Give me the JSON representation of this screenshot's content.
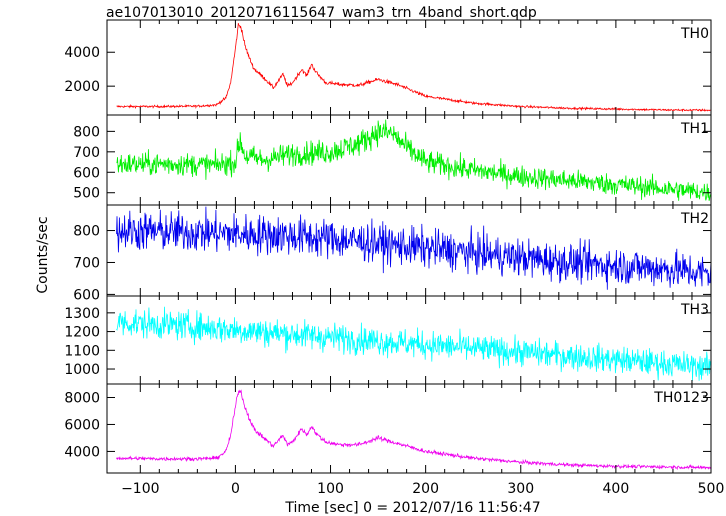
{
  "chart_data": {
    "type": "line",
    "title": "ae107013010_20120716115647_wam3_trn_4band_short.qdp",
    "xlabel": "Time [sec] 0 = 2012/07/16 11:56:47",
    "ylabel": "Counts/sec",
    "xlim": [
      -135,
      500
    ],
    "x_ticks": [
      "−100",
      "0",
      "100",
      "200",
      "300",
      "400",
      "500"
    ],
    "x_tick_values": [
      -100,
      0,
      100,
      200,
      300,
      400,
      500
    ],
    "panels": [
      {
        "name": "TH0",
        "color": "#ff0000",
        "ylim": [
          300,
          5900
        ],
        "y_ticks": [
          "2000",
          "4000"
        ],
        "y_tick_values": [
          2000,
          4000
        ],
        "series": [
          {
            "x": [
              -125,
              -80,
              -40,
              -20,
              -10,
              -5,
              0,
              3,
              6,
              10,
              15,
              20,
              30,
              40,
              50,
              55,
              60,
              70,
              75,
              80,
              85,
              95,
              110,
              130,
              150,
              170,
              200,
              250,
              300,
              350,
              400,
              450,
              500
            ],
            "y": [
              800,
              800,
              820,
              900,
              1300,
              2200,
              4200,
              5600,
              5500,
              4400,
              3600,
              3000,
              2500,
              1900,
              2700,
              2000,
              2200,
              3000,
              2600,
              3300,
              2800,
              2200,
              2100,
              2050,
              2400,
              2100,
              1400,
              1000,
              800,
              700,
              650,
              600,
              580
            ]
          }
        ]
      },
      {
        "name": "TH1",
        "color": "#00ee00",
        "ylim": [
          440,
          880
        ],
        "y_ticks": [
          "500",
          "600",
          "700",
          "800"
        ],
        "y_tick_values": [
          500,
          600,
          700,
          800
        ],
        "series": [
          {
            "x": [
              -125,
              -60,
              -20,
              0,
              5,
              10,
              30,
              60,
              100,
              130,
              150,
              165,
              180,
              200,
              250,
              300,
              350,
              400,
              450,
              500
            ],
            "y": [
              640,
              640,
              635,
              650,
              760,
              680,
              660,
              690,
              700,
              740,
              800,
              790,
              720,
              650,
              610,
              580,
              560,
              540,
              520,
              500
            ]
          }
        ]
      },
      {
        "name": "TH2",
        "color": "#0000ee",
        "ylim": [
          595,
          880
        ],
        "y_ticks": [
          "600",
          "700",
          "800"
        ],
        "y_tick_values": [
          600,
          700,
          800
        ],
        "series": [
          {
            "x": [
              -125,
              -50,
              0,
              50,
              100,
              150,
              200,
              250,
              300,
              350,
              400,
              450,
              500
            ],
            "y": [
              800,
              795,
              790,
              785,
              775,
              760,
              745,
              730,
              715,
              700,
              690,
              680,
              665
            ]
          }
        ]
      },
      {
        "name": "TH3",
        "color": "#00ffff",
        "ylim": [
          920,
          1390
        ],
        "y_ticks": [
          "1000",
          "1100",
          "1200",
          "1300"
        ],
        "y_tick_values": [
          1000,
          1100,
          1200,
          1300
        ],
        "series": [
          {
            "x": [
              -125,
              -50,
              0,
              50,
              100,
              150,
              200,
              250,
              300,
              350,
              400,
              450,
              500
            ],
            "y": [
              1250,
              1230,
              1210,
              1190,
              1170,
              1150,
              1130,
              1110,
              1090,
              1070,
              1050,
              1030,
              1010
            ]
          }
        ]
      },
      {
        "name": "TH0123",
        "color": "#ee00ee",
        "ylim": [
          2400,
          9000
        ],
        "y_ticks": [
          "4000",
          "6000",
          "8000"
        ],
        "y_tick_values": [
          4000,
          6000,
          8000
        ],
        "series": [
          {
            "x": [
              -125,
              -80,
              -40,
              -20,
              -10,
              -5,
              0,
              3,
              6,
              10,
              15,
              20,
              30,
              40,
              50,
              55,
              60,
              70,
              75,
              80,
              85,
              95,
              110,
              130,
              150,
              170,
              200,
              250,
              300,
              350,
              400,
              450,
              500
            ],
            "y": [
              3500,
              3450,
              3450,
              3500,
              4000,
              5200,
              7300,
              8500,
              8400,
              7300,
              6400,
              5600,
              5000,
              4400,
              5200,
              4500,
              4700,
              5700,
              5200,
              5900,
              5300,
              4700,
              4500,
              4500,
              5000,
              4600,
              4000,
              3500,
              3200,
              3000,
              2900,
              2850,
              2800
            ]
          }
        ]
      }
    ]
  }
}
